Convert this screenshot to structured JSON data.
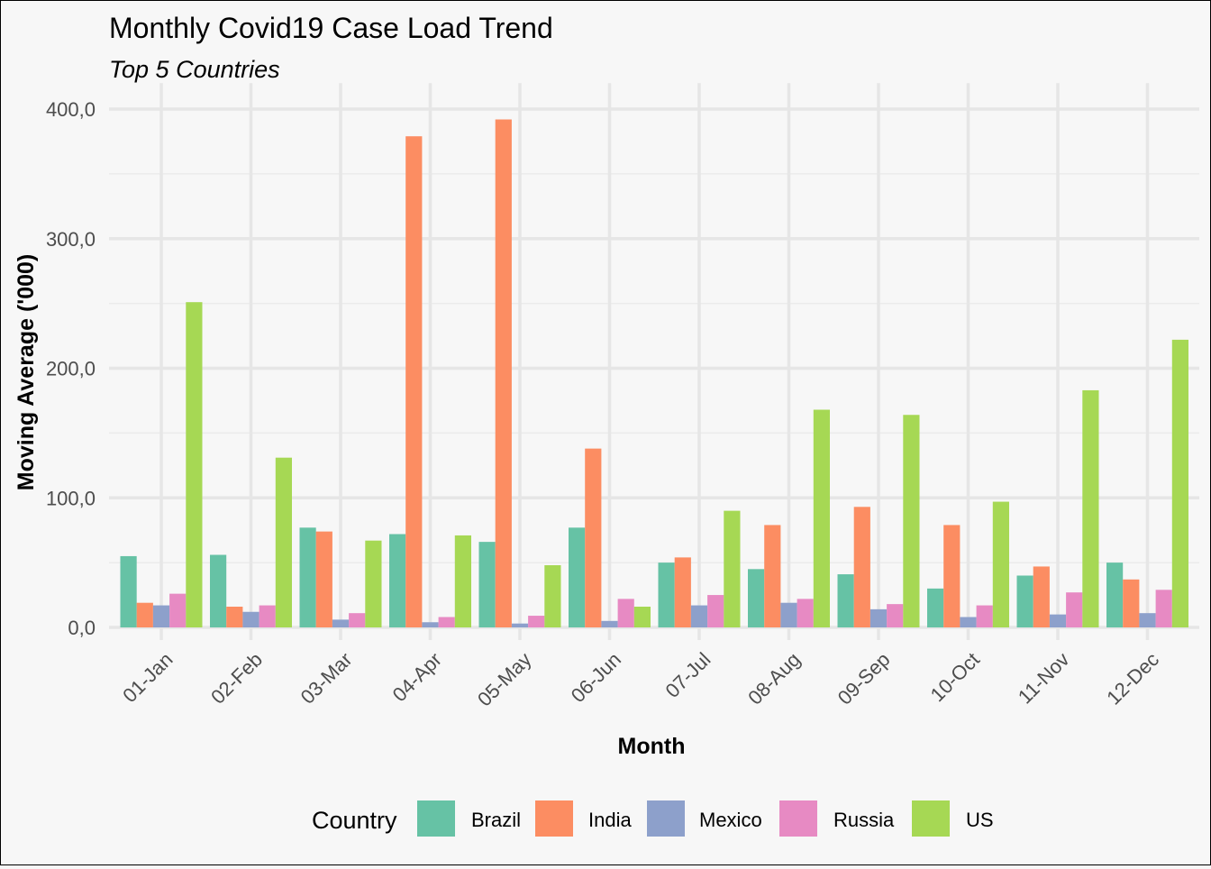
{
  "chart_data": {
    "type": "bar",
    "title": "Monthly Covid19 Case Load Trend",
    "subtitle": "Top 5 Countries",
    "xlabel": "Month",
    "ylabel": "Moving Average ('000)",
    "ylim": [
      0,
      420
    ],
    "y_ticks": [
      "0,0",
      "100,0",
      "200,0",
      "300,0",
      "400,0"
    ],
    "y_tick_values": [
      0,
      100,
      200,
      300,
      400
    ],
    "grid": true,
    "legend_position": "bottom",
    "legend_title": "Country",
    "categories": [
      "01-Jan",
      "02-Feb",
      "03-Mar",
      "04-Apr",
      "05-May",
      "06-Jun",
      "07-Jul",
      "08-Aug",
      "09-Sep",
      "10-Oct",
      "11-Nov",
      "12-Dec"
    ],
    "series": [
      {
        "name": "Brazil",
        "color": "#66c2a5",
        "values": [
          55,
          56,
          77,
          72,
          66,
          77,
          50,
          45,
          41,
          30,
          40,
          50
        ]
      },
      {
        "name": "India",
        "color": "#fc8d62",
        "values": [
          19,
          16,
          74,
          379,
          392,
          138,
          54,
          79,
          93,
          79,
          47,
          37
        ]
      },
      {
        "name": "Mexico",
        "color": "#8da0cb",
        "values": [
          17,
          12,
          6,
          4,
          3,
          5,
          17,
          19,
          14,
          8,
          10,
          11
        ]
      },
      {
        "name": "Russia",
        "color": "#e78ac3",
        "values": [
          26,
          17,
          11,
          8,
          9,
          22,
          25,
          22,
          18,
          17,
          27,
          29
        ]
      },
      {
        "name": "US",
        "color": "#a6d854",
        "values": [
          251,
          131,
          67,
          71,
          48,
          16,
          90,
          168,
          164,
          97,
          183,
          222
        ]
      }
    ]
  }
}
